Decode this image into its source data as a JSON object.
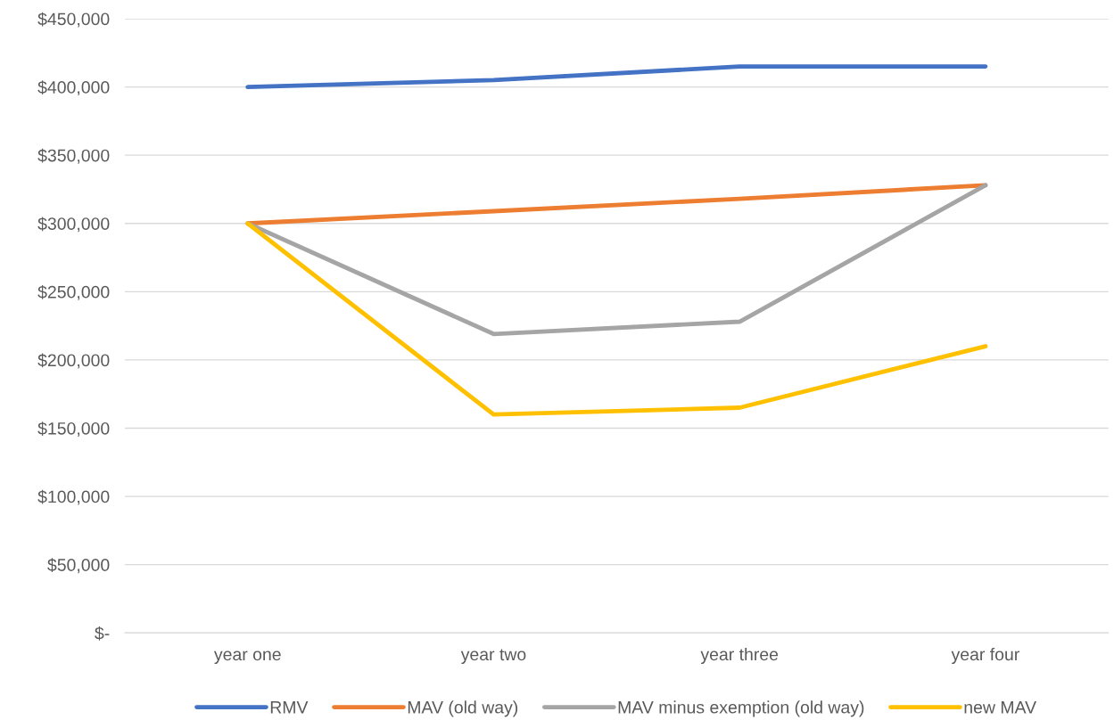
{
  "chart_data": {
    "type": "line",
    "categories": [
      "year one",
      "year two",
      "year three",
      "year four"
    ],
    "series": [
      {
        "name": "RMV",
        "color": "#4472c4",
        "values": [
          400000,
          405000,
          415000,
          415000
        ]
      },
      {
        "name": "MAV (old way)",
        "color": "#ed7d31",
        "values": [
          300000,
          309000,
          318000,
          328000
        ]
      },
      {
        "name": "MAV minus exemption (old way)",
        "color": "#a5a5a5",
        "values": [
          300000,
          219000,
          228000,
          328000
        ]
      },
      {
        "name": "new MAV",
        "color": "#ffc000",
        "values": [
          300000,
          160000,
          165000,
          210000
        ]
      }
    ],
    "ylim": [
      0,
      450000
    ],
    "yticks": [
      {
        "value": 0,
        "label": "$-"
      },
      {
        "value": 50000,
        "label": "$50,000"
      },
      {
        "value": 100000,
        "label": "$100,000"
      },
      {
        "value": 150000,
        "label": "$150,000"
      },
      {
        "value": 200000,
        "label": "$200,000"
      },
      {
        "value": 250000,
        "label": "$250,000"
      },
      {
        "value": 300000,
        "label": "$300,000"
      },
      {
        "value": 350000,
        "label": "$350,000"
      },
      {
        "value": 400000,
        "label": "$400,000"
      },
      {
        "value": 450000,
        "label": "$450,000"
      }
    ],
    "grid": "y",
    "legend": "bottom",
    "marker": "none",
    "line_style": "solid"
  }
}
